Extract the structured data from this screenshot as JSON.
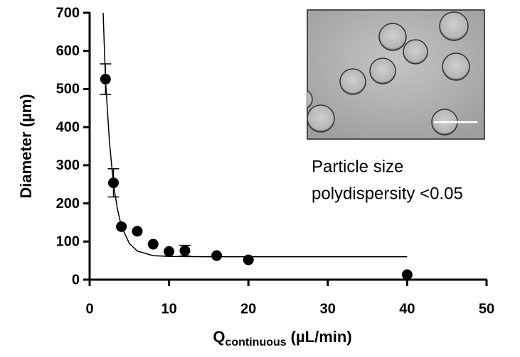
{
  "chart_data": {
    "type": "scatter",
    "x_label": {
      "main": "Q",
      "sub": "continuous",
      "unit": "(µL/min)"
    },
    "y_label": "Diameter (µm)",
    "annotation": [
      "Particle size",
      "polydispersity <0.05"
    ],
    "xlim": [
      0,
      50
    ],
    "xticks": [
      0,
      10,
      20,
      30,
      40,
      50
    ],
    "ylim": [
      0,
      700
    ],
    "yticks": [
      0,
      100,
      200,
      300,
      400,
      500,
      600,
      700
    ],
    "series": [
      {
        "type": "scatter",
        "color": "#000000",
        "x": [
          2,
          3,
          4,
          6,
          8,
          10,
          12,
          16,
          20,
          40
        ],
        "values": [
          526,
          254,
          139,
          127,
          93,
          74,
          76,
          63,
          52,
          13
        ],
        "errors": [
          40,
          37,
          null,
          null,
          null,
          null,
          14,
          null,
          null,
          null
        ]
      },
      {
        "type": "line",
        "color": "#000000",
        "x": [
          1.7,
          2,
          2.5,
          3,
          3.5,
          4,
          5,
          6,
          8,
          10,
          15,
          20,
          40
        ],
        "values": [
          700,
          525,
          360,
          250,
          185,
          140,
          95,
          75,
          63,
          61,
          60,
          60,
          60
        ]
      }
    ]
  }
}
